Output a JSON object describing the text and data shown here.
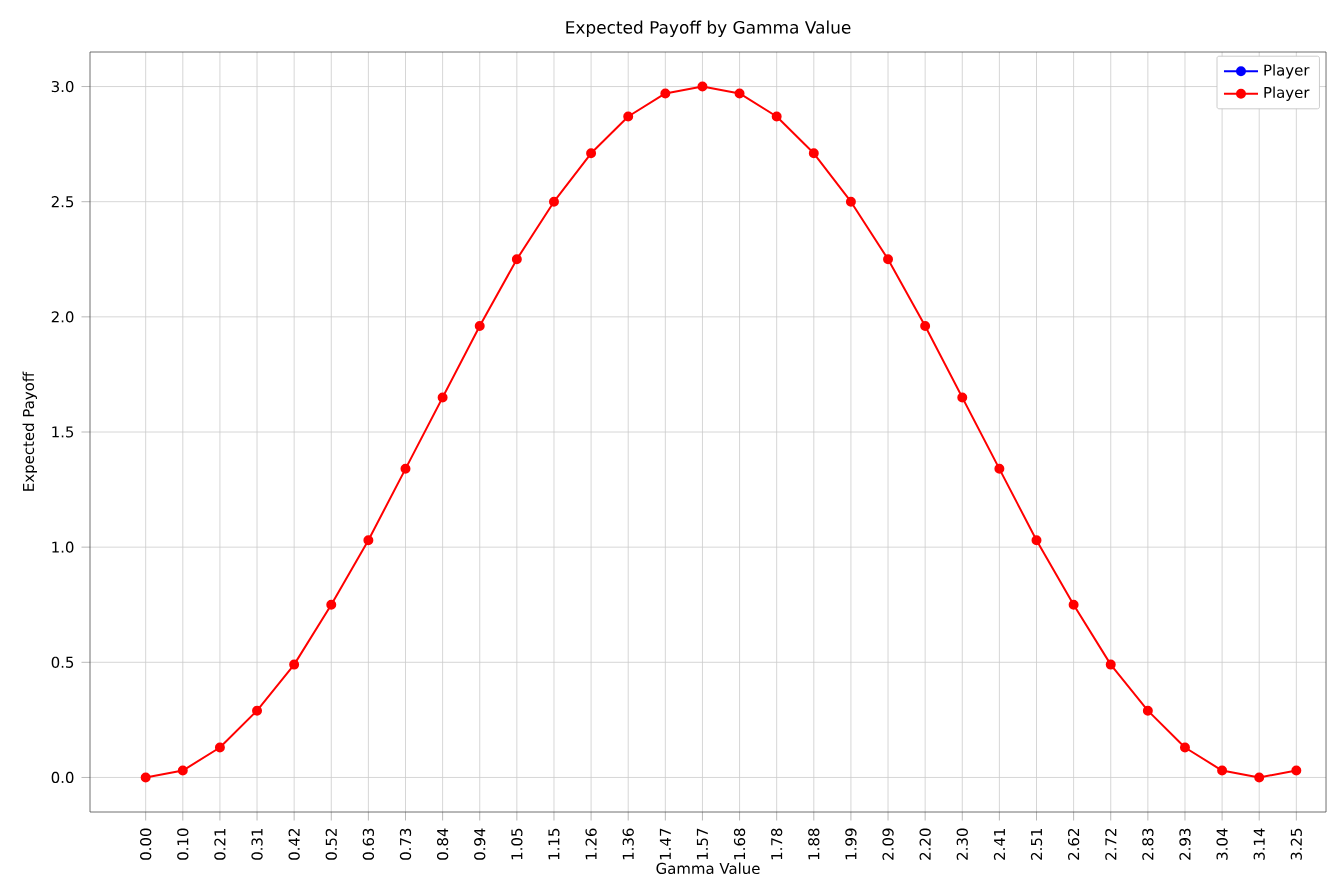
{
  "chart_data": {
    "type": "line",
    "title": "Expected Payoff by Gamma Value",
    "xlabel": "Gamma Value",
    "ylabel": "Expected Payoff",
    "categories": [
      "0.00",
      "0.10",
      "0.21",
      "0.31",
      "0.42",
      "0.52",
      "0.63",
      "0.73",
      "0.84",
      "0.94",
      "1.05",
      "1.15",
      "1.26",
      "1.36",
      "1.47",
      "1.57",
      "1.68",
      "1.78",
      "1.88",
      "1.99",
      "2.09",
      "2.20",
      "2.30",
      "2.41",
      "2.51",
      "2.62",
      "2.72",
      "2.83",
      "2.93",
      "3.04",
      "3.14",
      "3.25"
    ],
    "series": [
      {
        "name": "Player",
        "color": "#0000ff",
        "values": [
          null,
          null,
          null,
          null,
          null,
          null,
          null,
          null,
          null,
          null,
          null,
          null,
          null,
          null,
          null,
          null,
          null,
          null,
          null,
          null,
          null,
          null,
          null,
          null,
          null,
          null,
          null,
          null,
          null,
          null,
          null,
          null
        ]
      },
      {
        "name": "Player",
        "color": "#ff0000",
        "values": [
          0,
          0.03,
          0.13,
          0.29,
          0.49,
          0.75,
          1.03,
          1.34,
          1.65,
          1.96,
          2.25,
          2.5,
          2.71,
          2.87,
          2.97,
          3.0,
          2.97,
          2.87,
          2.71,
          2.5,
          2.25,
          1.96,
          1.65,
          1.34,
          1.03,
          0.75,
          0.49,
          0.29,
          0.13,
          0.03,
          0,
          0.03
        ]
      }
    ],
    "ylim": [
      -0.15,
      3.15
    ],
    "yticks": [
      {
        "value": 0,
        "label": "0.0"
      },
      0.5,
      {
        "value": 1,
        "label": "1.0"
      },
      1.5,
      {
        "value": 2,
        "label": "2.0"
      },
      2.5,
      {
        "value": 3,
        "label": "3.0"
      }
    ],
    "grid": true,
    "legend": "top right",
    "marker": "circle",
    "line_style": "solid"
  }
}
